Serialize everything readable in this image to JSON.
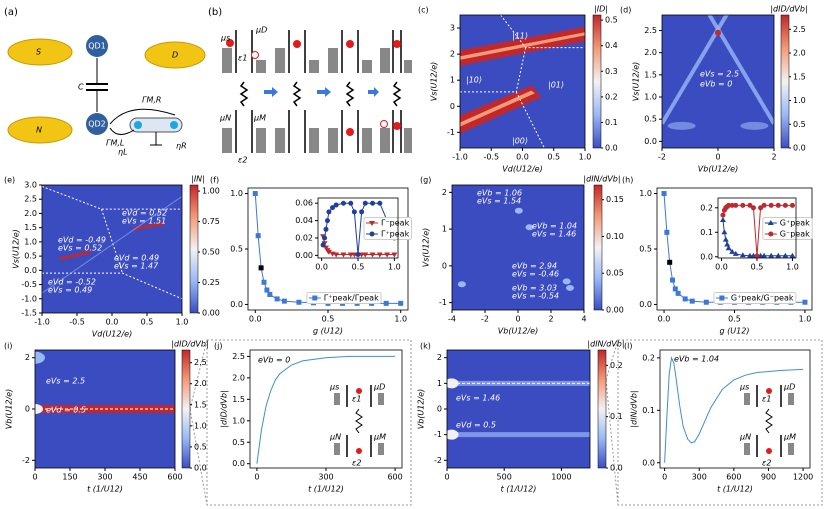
{
  "diagrams": {
    "panel_a": {
      "label": "(a)",
      "leads": [
        "S",
        "D",
        "N"
      ],
      "dots": [
        "QD1",
        "QD2"
      ],
      "capacitor": "C",
      "couplings": [
        "ΓM,R",
        "ΓM,L"
      ],
      "efficiencies": [
        "ηL",
        "ηR"
      ]
    },
    "panel_b": {
      "label": "(b)",
      "labels": [
        "μs",
        "μD",
        "ε1",
        "μN",
        "μM",
        "ε2"
      ]
    }
  },
  "chart_data": [
    {
      "type": "heatmap",
      "label": "(c)",
      "xlabel": "Vd(U12/e)",
      "ylabel": "Vs(U12/e)",
      "colorbar_label": "|ID|",
      "xlim": [
        -1,
        1
      ],
      "xticks": [
        {
          "value": -1,
          "label": "-1.0"
        },
        -0.5,
        {
          "value": 0,
          "label": "0.0"
        },
        0.5,
        {
          "value": 1,
          "label": "1.0"
        }
      ],
      "ylim": [
        -1.6,
        3.5
      ],
      "yticks": [
        -1,
        0,
        1,
        2,
        3
      ],
      "zlim": [
        0,
        0.52
      ],
      "zticks": [
        {
          "value": 0,
          "label": "0.0"
        },
        0.1,
        0.2,
        0.3,
        0.4,
        0.5
      ],
      "colormap": [
        "#3b4cc0",
        "#9ab8f5",
        "#f2f2f2",
        "#f39a78",
        "#c0282c"
      ],
      "annotations": [
        "|11⟩",
        "|10⟩",
        "|01⟩",
        "|00⟩"
      ]
    },
    {
      "type": "heatmap",
      "label": "(d)",
      "xlabel": "Vb(U12/e)",
      "ylabel": "Vs(U12/e)",
      "colorbar_label": "|dID/dVb|",
      "xlim": [
        -2,
        2
      ],
      "xticks": [
        -2,
        0,
        2
      ],
      "ylim": [
        -0.15,
        2.85
      ],
      "yticks": [
        {
          "value": 0,
          "label": "0.0"
        },
        0.5,
        {
          "value": 1,
          "label": "1.0"
        },
        1.5,
        {
          "value": 2,
          "label": "2.0"
        },
        2.5
      ],
      "zlim": [
        0,
        2.8
      ],
      "zticks": [
        {
          "value": 0,
          "label": "0.0"
        },
        0.5,
        {
          "value": 1,
          "label": "1.0"
        },
        1.5,
        {
          "value": 2,
          "label": "2.0"
        },
        2.5
      ],
      "colormap": [
        "#3b4cc0",
        "#9ab8f5",
        "#f2f2f2",
        "#f39a78",
        "#c0282c"
      ],
      "annotations": [
        "eVs = 2.5",
        "eVb = 0"
      ]
    },
    {
      "type": "heatmap",
      "label": "(e)",
      "xlabel": "Vd(U12/e)",
      "ylabel": "Vs(U12/e)",
      "colorbar_label": "|IN|",
      "xlim": [
        -1,
        1
      ],
      "xticks": [
        {
          "value": -1,
          "label": "-1.0"
        },
        -0.5,
        {
          "value": 0,
          "label": "0.0"
        },
        0.5,
        {
          "value": 1,
          "label": "1.0"
        }
      ],
      "ylim": [
        -1.5,
        3
      ],
      "yticks": [
        -1.5,
        {
          "value": -1,
          "label": "-1.0"
        },
        -0.5,
        {
          "value": 0,
          "label": "0.0"
        },
        0.5,
        {
          "value": 1,
          "label": "1.0"
        },
        1.5,
        {
          "value": 2,
          "label": "2.0"
        },
        2.5,
        {
          "value": 3,
          "label": "3.0"
        }
      ],
      "zlim": [
        0,
        1.05
      ],
      "zticks": [
        {
          "value": 0,
          "label": "0.00"
        },
        0.25,
        {
          "value": 0.5,
          "label": "0.50"
        },
        0.75,
        {
          "value": 1,
          "label": "1.00"
        }
      ],
      "colormap": [
        "#3b4cc0",
        "#9ab8f5",
        "#f2f2f2",
        "#f39a78",
        "#c0282c"
      ],
      "annotations": [
        "eVd = 0.52",
        "eVs = 1.51",
        "eVd = -0.49",
        "eVs = 0.52",
        "eVd = 0.49",
        "eVs = 1.47",
        "eVd = -0.52",
        "eVs = 0.49"
      ]
    },
    {
      "type": "line",
      "label": "(f)",
      "xlabel": "g (U12)",
      "legend": "lower right",
      "xlim": [
        -0.05,
        1.05
      ],
      "xticks": [
        {
          "value": 0,
          "label": "0.0"
        },
        0.5,
        {
          "value": 1,
          "label": "1.0"
        }
      ],
      "ylim": [
        -0.05,
        1.05
      ],
      "yticks": [
        {
          "value": 0,
          "label": "0.0"
        },
        0.5,
        {
          "value": 1,
          "label": "1.0"
        }
      ],
      "x": [
        0,
        0.02,
        0.04,
        0.06,
        0.08,
        0.1,
        0.15,
        0.2,
        0.3,
        0.4,
        0.5,
        0.6,
        0.7,
        0.8,
        0.9,
        1.0
      ],
      "highlight": {
        "index": 2,
        "color": "#000000"
      },
      "series": [
        {
          "name": "Γ⁺peak/Γpeak",
          "color": "#3c78d8",
          "marker": "square",
          "values": [
            1.0,
            0.62,
            0.33,
            0.2,
            0.13,
            0.09,
            0.05,
            0.03,
            0.02,
            0.015,
            0.01,
            0.01,
            0.01,
            0.01,
            0.01,
            0.01
          ]
        }
      ]
    },
    {
      "type": "line",
      "legend": "center right",
      "xlim": [
        -0.05,
        1.05
      ],
      "xticks": [
        {
          "value": 0,
          "label": "0.0"
        },
        0.5,
        {
          "value": 1,
          "label": "1.0"
        }
      ],
      "ylim": [
        -0.003,
        0.066
      ],
      "yticks": [
        {
          "value": 0,
          "label": "0.00"
        },
        0.02,
        0.04,
        0.06
      ],
      "x": [
        0.02,
        0.04,
        0.06,
        0.08,
        0.1,
        0.15,
        0.2,
        0.3,
        0.4,
        0.45,
        0.5,
        0.55,
        0.6,
        0.7,
        0.8,
        0.9,
        1.0
      ],
      "series": [
        {
          "name": "Γ⁻peak",
          "color": "#c0282c",
          "marker": "triangle-down",
          "values": [
            0.022,
            0.014,
            0.009,
            0.006,
            0.004,
            0.002,
            0.001,
            0.001,
            0.001,
            0.001,
            0.001,
            0.001,
            0.001,
            0.001,
            0.001,
            0.001,
            0.001
          ]
        },
        {
          "name": "Γ⁺peak",
          "color": "#1f3f9f",
          "marker": "circle",
          "values": [
            0.012,
            0.02,
            0.03,
            0.04,
            0.05,
            0.055,
            0.058,
            0.06,
            0.06,
            0.05,
            0.001,
            0.05,
            0.06,
            0.06,
            0.06,
            0.04,
            0.02
          ]
        }
      ]
    },
    {
      "type": "heatmap",
      "label": "(g)",
      "xlabel": "Vb(U12/e)",
      "ylabel": "Vs(U12/e)",
      "colorbar_label": "|dIN/dVb|",
      "xlim": [
        -4,
        4
      ],
      "xticks": [
        -4,
        -2,
        0,
        2,
        4
      ],
      "ylim": [
        -1.2,
        2.2
      ],
      "yticks": [
        -1,
        0,
        1,
        2
      ],
      "zlim": [
        0,
        0.17
      ],
      "zticks": [
        {
          "value": 0,
          "label": "0.00"
        },
        0.05,
        {
          "value": 0.1,
          "label": "0.10"
        },
        0.15
      ],
      "colormap": [
        "#3b4cc0",
        "#9ab8f5",
        "#f2f2f2",
        "#f39a78",
        "#c0282c"
      ],
      "annotations": [
        "eVb = 1.06",
        "eVs = 1.54",
        "eVb = 1.04",
        "eVs = 1.46",
        "eVb = 2.94",
        "eVs = -0.46",
        "eVb = 3.03",
        "eVs = -0.54"
      ]
    },
    {
      "type": "line",
      "label": "(h)",
      "xlabel": "g (U12)",
      "legend": "lower right",
      "xlim": [
        -0.05,
        1.05
      ],
      "xticks": [
        {
          "value": 0,
          "label": "0.0"
        },
        0.5,
        {
          "value": 1,
          "label": "1.0"
        }
      ],
      "ylim": [
        -0.05,
        1.05
      ],
      "yticks": [
        {
          "value": 0,
          "label": "0.0"
        },
        0.5,
        {
          "value": 1,
          "label": "1.0"
        }
      ],
      "x": [
        0,
        0.02,
        0.04,
        0.06,
        0.08,
        0.1,
        0.15,
        0.2,
        0.3,
        0.4,
        0.5,
        0.6,
        0.7,
        0.8,
        0.9,
        1.0
      ],
      "highlight": {
        "index": 2,
        "color": "#000000"
      },
      "series": [
        {
          "name": "G⁺peak/G⁻peak",
          "color": "#3c78d8",
          "marker": "square",
          "values": [
            1.0,
            0.65,
            0.38,
            0.22,
            0.14,
            0.1,
            0.05,
            0.03,
            0.02,
            0.02,
            0.02,
            0.02,
            0.02,
            0.02,
            0.02,
            0.02
          ]
        }
      ]
    },
    {
      "type": "line",
      "legend": "center right",
      "xlim": [
        -0.05,
        1.05
      ],
      "xticks": [
        {
          "value": 0,
          "label": "0.0"
        },
        0.5,
        {
          "value": 1,
          "label": "1.0"
        }
      ],
      "ylim": [
        -0.005,
        0.24
      ],
      "yticks": [
        {
          "value": 0,
          "label": "0.0"
        },
        0.1,
        0.2
      ],
      "x": [
        0.02,
        0.04,
        0.06,
        0.08,
        0.1,
        0.15,
        0.2,
        0.3,
        0.4,
        0.45,
        0.5,
        0.55,
        0.6,
        0.7,
        0.8,
        0.9,
        1.0
      ],
      "series": [
        {
          "name": "G⁺peak",
          "color": "#1f3f9f",
          "marker": "triangle-up",
          "values": [
            0.15,
            0.1,
            0.07,
            0.05,
            0.035,
            0.02,
            0.012,
            0.006,
            0.004,
            0.004,
            0.004,
            0.004,
            0.004,
            0.004,
            0.004,
            0.004,
            0.004
          ]
        },
        {
          "name": "G⁻peak",
          "color": "#c0282c",
          "marker": "circle",
          "values": [
            0.17,
            0.19,
            0.2,
            0.205,
            0.21,
            0.21,
            0.21,
            0.21,
            0.21,
            0.2,
            0.003,
            0.2,
            0.21,
            0.21,
            0.21,
            0.21,
            0.21
          ]
        }
      ]
    },
    {
      "type": "heatmap",
      "label": "(i)",
      "xlabel": "t (1/U12)",
      "ylabel": "Vb(U12/e)",
      "colorbar_label": "|dID/dVb|",
      "xlim": [
        0,
        600
      ],
      "xticks": [
        0,
        150,
        300,
        450,
        600
      ],
      "ylim": [
        -2.3,
        2.3
      ],
      "yticks": [
        -2,
        0,
        2
      ],
      "zlim": [
        0,
        2.8
      ],
      "zticks": [
        {
          "value": 0,
          "label": "0.0"
        },
        0.5,
        {
          "value": 1,
          "label": "1.0"
        },
        1.5,
        {
          "value": 2,
          "label": "2.0"
        },
        2.5
      ],
      "colormap": [
        "#3b4cc0",
        "#9ab8f5",
        "#f2f2f2",
        "#f39a78",
        "#c0282c"
      ],
      "annotations": [
        "eVs = 2.5",
        "eVd = 0.5"
      ]
    },
    {
      "type": "line",
      "label": "(j)",
      "xlabel": "t (1/U12)",
      "ylabel": "|dID/dVb|",
      "xlim": [
        -30,
        630
      ],
      "xticks": [
        0,
        300,
        600
      ],
      "ylim": [
        -0.1,
        2.65
      ],
      "yticks": [
        {
          "value": 0,
          "label": "0.0"
        },
        0.5,
        {
          "value": 1,
          "label": "1.0"
        },
        1.5,
        {
          "value": 2,
          "label": "2.0"
        },
        2.5
      ],
      "x": [
        0,
        20,
        40,
        60,
        80,
        100,
        150,
        200,
        300,
        400,
        500,
        600
      ],
      "series": [
        {
          "color": "#3c8fd0",
          "values": [
            0,
            0.8,
            1.35,
            1.7,
            1.95,
            2.1,
            2.3,
            2.4,
            2.47,
            2.5,
            2.5,
            2.5
          ]
        }
      ],
      "annotations": [
        "eVb = 0"
      ],
      "schematic_labels": [
        "μs",
        "ε1",
        "μD",
        "μN",
        "μM",
        "ε2"
      ]
    },
    {
      "type": "heatmap",
      "label": "(k)",
      "xlabel": "t (1/U12)",
      "ylabel": "Vb(U12/e)",
      "colorbar_label": "|dIN/dVb|",
      "xlim": [
        0,
        1250
      ],
      "xticks": [
        0,
        500,
        1000
      ],
      "ylim": [
        -2.3,
        2.3
      ],
      "yticks": [
        -2,
        -1,
        0,
        1,
        2
      ],
      "zlim": [
        0,
        0.23
      ],
      "zticks": [
        {
          "value": 0,
          "label": "0.0"
        },
        0.1,
        0.2
      ],
      "colormap": [
        "#3b4cc0",
        "#9ab8f5",
        "#f2f2f2",
        "#f39a78",
        "#c0282c"
      ],
      "annotations": [
        "eVs = 1.46",
        "eVd = 0.5"
      ]
    },
    {
      "type": "line",
      "label": "(l)",
      "xlabel": "t (1/U12)",
      "ylabel": "|dIN/dVb|",
      "xlim": [
        -40,
        1260
      ],
      "xticks": [
        0,
        300,
        600,
        900,
        1200
      ],
      "ylim": [
        -0.01,
        0.215
      ],
      "yticks": [
        {
          "value": 0,
          "label": "0.0"
        },
        0.1,
        0.2
      ],
      "x": [
        0,
        20,
        40,
        60,
        80,
        100,
        130,
        160,
        200,
        230,
        260,
        300,
        350,
        400,
        500,
        600,
        700,
        800,
        1000,
        1200
      ],
      "series": [
        {
          "color": "#3c8fd0",
          "values": [
            0,
            0.09,
            0.17,
            0.2,
            0.19,
            0.16,
            0.11,
            0.07,
            0.045,
            0.038,
            0.04,
            0.055,
            0.08,
            0.105,
            0.14,
            0.158,
            0.167,
            0.172,
            0.176,
            0.178
          ]
        }
      ],
      "annotations": [
        "eVb = 1.04"
      ],
      "schematic_labels": [
        "μs",
        "ε1",
        "μD",
        "μN",
        "μM",
        "ε2"
      ]
    }
  ]
}
